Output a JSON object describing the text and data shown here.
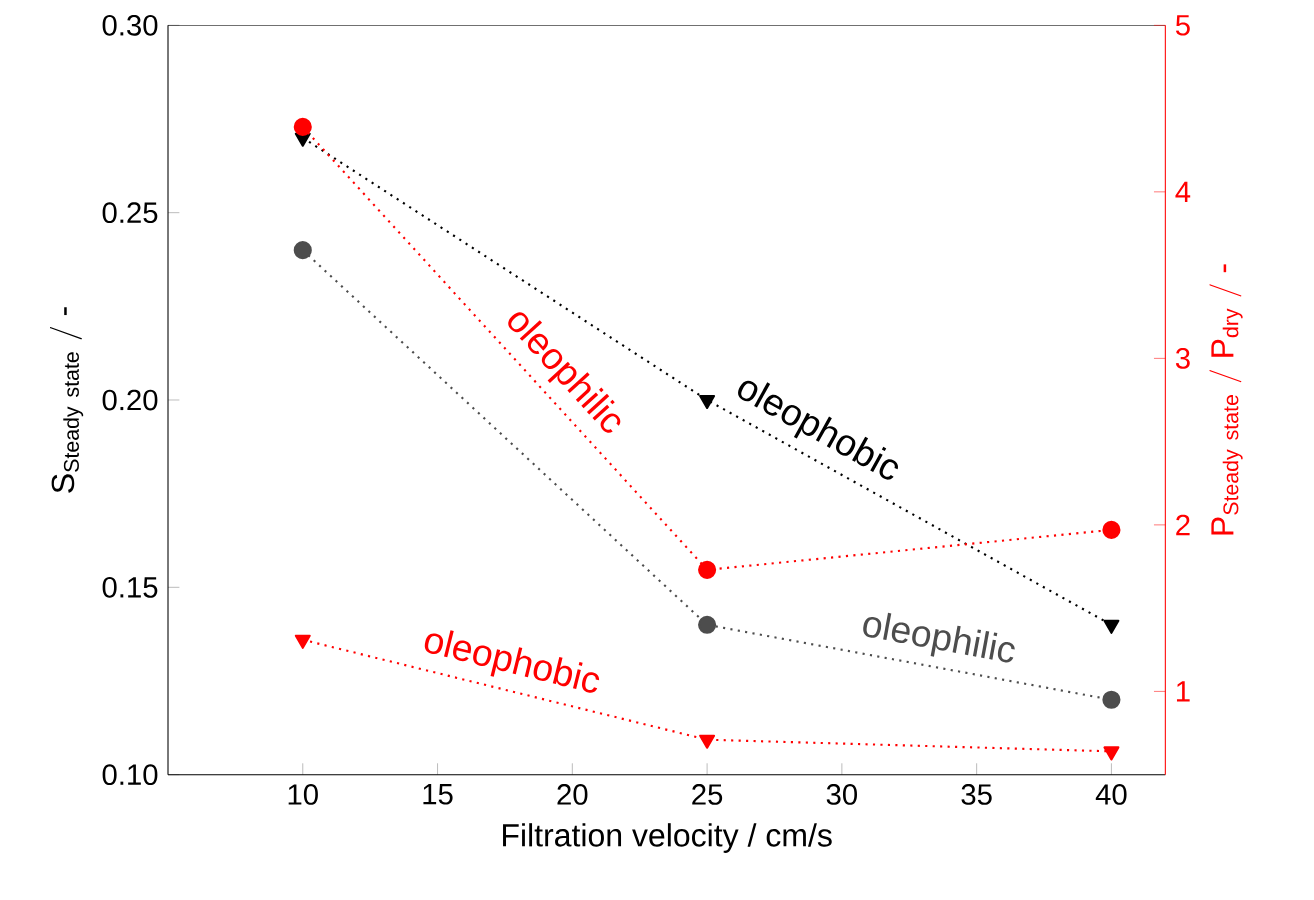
{
  "chart_data": {
    "type": "line",
    "xlabel": "Filtration velocity / cm/s",
    "ylabel": "\\mathrm{S_{Steady\\ state}\\ /\\ \\mbox{-}}",
    "y2label": "\\mathrm{P_{Steady\\ state}\\ /\\ P_{dry}\\ /\\ \\mbox{-}}",
    "x": [
      10,
      25,
      40
    ],
    "xlim": [
      5,
      42
    ],
    "xticks": [
      10,
      15,
      20,
      25,
      30,
      35,
      40
    ],
    "ylim": [
      0.1,
      0.3
    ],
    "yticks": [
      {
        "value": 0.1,
        "label": "0.10"
      },
      0.15,
      {
        "value": 0.2,
        "label": "0.20"
      },
      0.25,
      {
        "value": 0.3,
        "label": "0.30"
      }
    ],
    "y2lim": [
      0.5,
      5
    ],
    "y2ticks": [
      1,
      2,
      3,
      4,
      5
    ],
    "line_style": "dotted",
    "series": [
      {
        "name": "oleophobic",
        "color": "#000000",
        "marker": "triangle",
        "values": [
          0.27,
          0.2,
          0.14
        ]
      },
      {
        "name": "oleophilic",
        "color": "#4d4d4d",
        "marker": "circle",
        "values": [
          0.24,
          0.14,
          0.12
        ]
      },
      {
        "name": "oleophilic",
        "color": "#ff0000",
        "marker": "circle",
        "axis": "y2",
        "values": [
          4.39,
          1.73,
          1.97
        ]
      },
      {
        "name": "oleophobic",
        "color": "#ff0000",
        "marker": "triangle",
        "axis": "y2",
        "values": [
          1.31,
          0.71,
          0.64
        ]
      }
    ]
  }
}
